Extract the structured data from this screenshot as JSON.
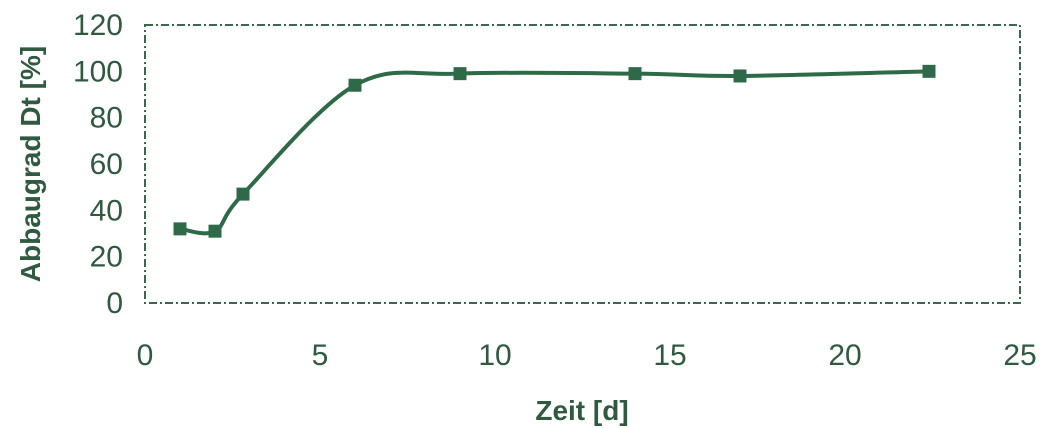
{
  "chart_data": {
    "type": "line",
    "title": "",
    "xlabel": "Zeit [d]",
    "ylabel": "Abbaugrad Dt [%]",
    "xlim": [
      0,
      25
    ],
    "ylim": [
      0,
      120
    ],
    "xticks": [
      0,
      5,
      10,
      15,
      20,
      25
    ],
    "yticks": [
      0,
      20,
      40,
      60,
      80,
      100,
      120
    ],
    "grid": false,
    "series": [
      {
        "x": [
          1,
          2,
          2.8,
          6,
          9,
          14,
          17,
          22.4
        ],
        "y": [
          32,
          31,
          47,
          94,
          99,
          99,
          98,
          100
        ],
        "color": "#2f6a48",
        "marker": "square",
        "smooth": true
      }
    ]
  }
}
